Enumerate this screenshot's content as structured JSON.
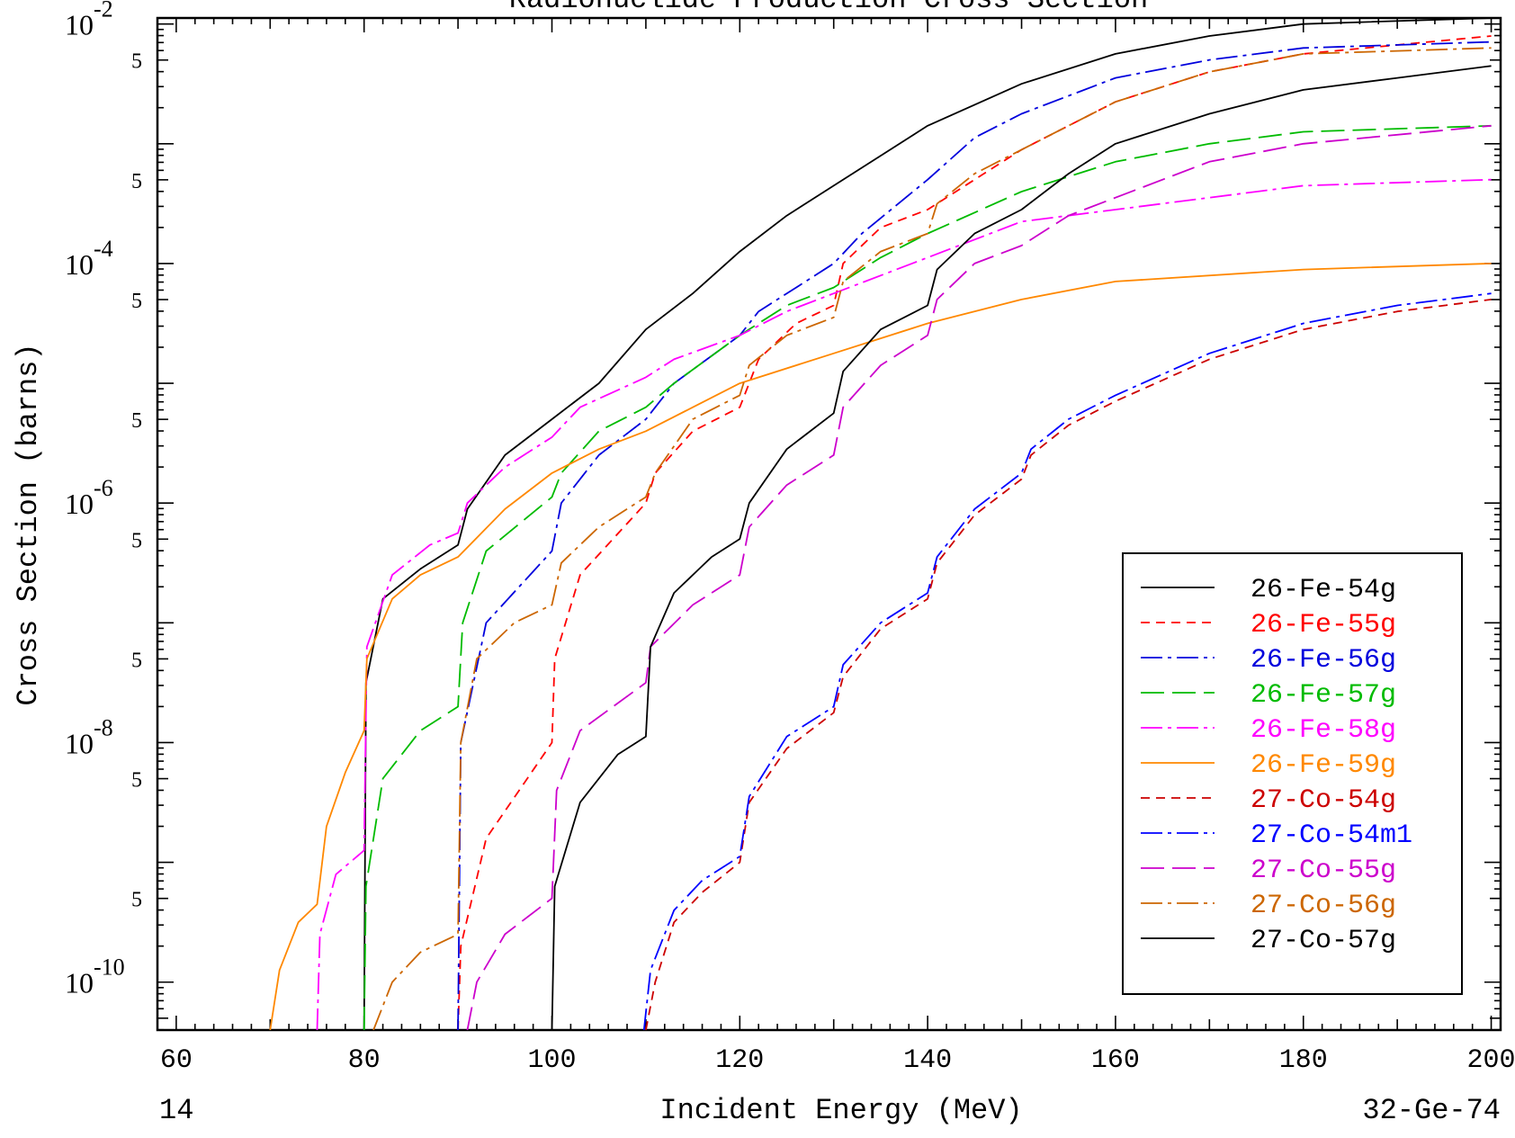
{
  "chart_data": {
    "type": "line",
    "title": "Radionuclide Production Cross Section",
    "xlabel": "Incident Energy (MeV)",
    "ylabel": "Cross Section (barns)",
    "xlim": [
      58,
      201
    ],
    "ylim_log10": [
      -10.4,
      -1.95
    ],
    "y_scale": "log",
    "grid": false,
    "legend_position": "bottom-right",
    "x_ticks": [
      "60",
      "80",
      "100",
      "120",
      "140",
      "160",
      "180",
      "200"
    ],
    "y_decade_labels": [
      {
        "exp": -2,
        "text": "10",
        "sup": "-2"
      },
      {
        "exp": -4,
        "text": "10",
        "sup": "-4"
      },
      {
        "exp": -6,
        "text": "10",
        "sup": "-6"
      },
      {
        "exp": -8,
        "text": "10",
        "sup": "-8"
      },
      {
        "exp": -10,
        "text": "10",
        "sup": "-10"
      }
    ],
    "y_five_label": "5",
    "y_five_decades": [
      -3,
      -4,
      -5,
      -6,
      -7,
      -8,
      -9,
      -10
    ],
    "corner_left": "14",
    "corner_right": "32-Ge-74",
    "series": [
      {
        "name": "26-Fe-54g",
        "color": "#000000",
        "dash": "solid",
        "points": [
          [
            80,
            -10.4
          ],
          [
            80.2,
            -7.5
          ],
          [
            82,
            -6.8
          ],
          [
            86,
            -6.55
          ],
          [
            90,
            -6.35
          ],
          [
            91,
            -6.05
          ],
          [
            95,
            -5.6
          ],
          [
            100,
            -5.3
          ],
          [
            105,
            -5.0
          ],
          [
            110,
            -4.55
          ],
          [
            115,
            -4.25
          ],
          [
            120,
            -3.9
          ],
          [
            125,
            -3.6
          ],
          [
            130,
            -3.35
          ],
          [
            135,
            -3.1
          ],
          [
            140,
            -2.85
          ],
          [
            150,
            -2.5
          ],
          [
            160,
            -2.25
          ],
          [
            170,
            -2.1
          ],
          [
            180,
            -2.0
          ],
          [
            200,
            -1.95
          ]
        ]
      },
      {
        "name": "26-Fe-55g",
        "color": "#ff0000",
        "dash": "short",
        "points": [
          [
            90,
            -10.4
          ],
          [
            90.3,
            -9.7
          ],
          [
            93,
            -8.8
          ],
          [
            100,
            -8.0
          ],
          [
            100.3,
            -7.3
          ],
          [
            103,
            -6.6
          ],
          [
            110,
            -6.0
          ],
          [
            111,
            -5.75
          ],
          [
            115,
            -5.4
          ],
          [
            120,
            -5.2
          ],
          [
            122,
            -4.8
          ],
          [
            126,
            -4.5
          ],
          [
            130,
            -4.35
          ],
          [
            131,
            -4.0
          ],
          [
            135,
            -3.7
          ],
          [
            140,
            -3.55
          ],
          [
            145,
            -3.3
          ],
          [
            150,
            -3.05
          ],
          [
            160,
            -2.65
          ],
          [
            170,
            -2.4
          ],
          [
            180,
            -2.25
          ],
          [
            200,
            -2.1
          ]
        ]
      },
      {
        "name": "26-Fe-56g",
        "color": "#0000dd",
        "dash": "dashdot",
        "points": [
          [
            90,
            -10.4
          ],
          [
            90.3,
            -8.0
          ],
          [
            93,
            -7.0
          ],
          [
            100,
            -6.4
          ],
          [
            101,
            -6.0
          ],
          [
            105,
            -5.6
          ],
          [
            110,
            -5.3
          ],
          [
            113,
            -5.0
          ],
          [
            120,
            -4.6
          ],
          [
            122,
            -4.4
          ],
          [
            126,
            -4.2
          ],
          [
            130,
            -4.0
          ],
          [
            133,
            -3.75
          ],
          [
            140,
            -3.3
          ],
          [
            145,
            -2.95
          ],
          [
            150,
            -2.75
          ],
          [
            160,
            -2.45
          ],
          [
            170,
            -2.3
          ],
          [
            180,
            -2.2
          ],
          [
            200,
            -2.15
          ]
        ]
      },
      {
        "name": "26-Fe-57g",
        "color": "#00bb00",
        "dash": "long",
        "points": [
          [
            80,
            -10.4
          ],
          [
            80.2,
            -9.2
          ],
          [
            82,
            -8.3
          ],
          [
            86,
            -7.9
          ],
          [
            90,
            -7.7
          ],
          [
            90.5,
            -7.0
          ],
          [
            93,
            -6.4
          ],
          [
            100,
            -5.95
          ],
          [
            101,
            -5.75
          ],
          [
            105,
            -5.4
          ],
          [
            110,
            -5.2
          ],
          [
            113,
            -5.0
          ],
          [
            120,
            -4.6
          ],
          [
            125,
            -4.35
          ],
          [
            130,
            -4.2
          ],
          [
            135,
            -3.95
          ],
          [
            140,
            -3.75
          ],
          [
            150,
            -3.4
          ],
          [
            160,
            -3.15
          ],
          [
            170,
            -3.0
          ],
          [
            180,
            -2.9
          ],
          [
            200,
            -2.85
          ]
        ]
      },
      {
        "name": "26-Fe-58g",
        "color": "#ff00ff",
        "dash": "dashdot",
        "points": [
          [
            75,
            -10.4
          ],
          [
            75.3,
            -9.6
          ],
          [
            77,
            -9.1
          ],
          [
            80,
            -8.9
          ],
          [
            80.3,
            -7.2
          ],
          [
            83,
            -6.6
          ],
          [
            87,
            -6.35
          ],
          [
            90,
            -6.25
          ],
          [
            91,
            -6.0
          ],
          [
            95,
            -5.7
          ],
          [
            100,
            -5.45
          ],
          [
            103,
            -5.2
          ],
          [
            110,
            -4.95
          ],
          [
            113,
            -4.8
          ],
          [
            120,
            -4.6
          ],
          [
            125,
            -4.4
          ],
          [
            130,
            -4.25
          ],
          [
            140,
            -3.95
          ],
          [
            150,
            -3.65
          ],
          [
            160,
            -3.55
          ],
          [
            170,
            -3.45
          ],
          [
            180,
            -3.35
          ],
          [
            200,
            -3.3
          ]
        ]
      },
      {
        "name": "26-Fe-59g",
        "color": "#ff8800",
        "dash": "solid",
        "points": [
          [
            70,
            -10.4
          ],
          [
            71,
            -9.9
          ],
          [
            73,
            -9.5
          ],
          [
            75,
            -9.35
          ],
          [
            76,
            -8.7
          ],
          [
            78,
            -8.25
          ],
          [
            80,
            -7.9
          ],
          [
            80.3,
            -7.3
          ],
          [
            83,
            -6.8
          ],
          [
            86,
            -6.6
          ],
          [
            90,
            -6.45
          ],
          [
            95,
            -6.05
          ],
          [
            100,
            -5.75
          ],
          [
            105,
            -5.55
          ],
          [
            110,
            -5.4
          ],
          [
            115,
            -5.2
          ],
          [
            120,
            -5.0
          ],
          [
            130,
            -4.75
          ],
          [
            140,
            -4.5
          ],
          [
            150,
            -4.3
          ],
          [
            160,
            -4.15
          ],
          [
            180,
            -4.05
          ],
          [
            200,
            -4.0
          ]
        ]
      },
      {
        "name": "27-Co-54g",
        "color": "#cc0000",
        "dash": "short",
        "points": [
          [
            110,
            -10.4
          ],
          [
            111,
            -10.0
          ],
          [
            113,
            -9.5
          ],
          [
            116,
            -9.25
          ],
          [
            120,
            -9.0
          ],
          [
            121,
            -8.5
          ],
          [
            125,
            -8.05
          ],
          [
            130,
            -7.75
          ],
          [
            131,
            -7.45
          ],
          [
            135,
            -7.05
          ],
          [
            140,
            -6.8
          ],
          [
            141,
            -6.5
          ],
          [
            145,
            -6.1
          ],
          [
            150,
            -5.8
          ],
          [
            151,
            -5.6
          ],
          [
            155,
            -5.35
          ],
          [
            160,
            -5.15
          ],
          [
            170,
            -4.8
          ],
          [
            180,
            -4.55
          ],
          [
            190,
            -4.4
          ],
          [
            200,
            -4.3
          ]
        ]
      },
      {
        "name": "27-Co-54m1",
        "color": "#0000ff",
        "dash": "dashdot",
        "points": [
          [
            109.8,
            -10.4
          ],
          [
            110.5,
            -9.9
          ],
          [
            113,
            -9.4
          ],
          [
            116,
            -9.15
          ],
          [
            120,
            -8.95
          ],
          [
            121,
            -8.45
          ],
          [
            125,
            -7.95
          ],
          [
            130,
            -7.7
          ],
          [
            131,
            -7.35
          ],
          [
            135,
            -7.0
          ],
          [
            140,
            -6.75
          ],
          [
            141,
            -6.45
          ],
          [
            145,
            -6.05
          ],
          [
            150,
            -5.75
          ],
          [
            151,
            -5.55
          ],
          [
            155,
            -5.3
          ],
          [
            160,
            -5.1
          ],
          [
            170,
            -4.75
          ],
          [
            180,
            -4.5
          ],
          [
            190,
            -4.35
          ],
          [
            200,
            -4.25
          ]
        ]
      },
      {
        "name": "27-Co-55g",
        "color": "#cc00cc",
        "dash": "long",
        "points": [
          [
            91,
            -10.4
          ],
          [
            92,
            -10.0
          ],
          [
            95,
            -9.6
          ],
          [
            100,
            -9.3
          ],
          [
            100.5,
            -8.4
          ],
          [
            103,
            -7.9
          ],
          [
            110,
            -7.5
          ],
          [
            110.5,
            -7.2
          ],
          [
            115,
            -6.85
          ],
          [
            120,
            -6.6
          ],
          [
            121,
            -6.2
          ],
          [
            125,
            -5.85
          ],
          [
            130,
            -5.6
          ],
          [
            131,
            -5.2
          ],
          [
            135,
            -4.85
          ],
          [
            140,
            -4.6
          ],
          [
            141,
            -4.3
          ],
          [
            145,
            -4.0
          ],
          [
            150,
            -3.85
          ],
          [
            155,
            -3.6
          ],
          [
            160,
            -3.45
          ],
          [
            170,
            -3.15
          ],
          [
            180,
            -3.0
          ],
          [
            200,
            -2.85
          ]
        ]
      },
      {
        "name": "27-Co-56g",
        "color": "#cc6600",
        "dash": "dashdot",
        "points": [
          [
            81,
            -10.4
          ],
          [
            83,
            -10.0
          ],
          [
            86,
            -9.75
          ],
          [
            90,
            -9.6
          ],
          [
            90.3,
            -8.0
          ],
          [
            92,
            -7.3
          ],
          [
            96,
            -7.0
          ],
          [
            100,
            -6.85
          ],
          [
            101,
            -6.5
          ],
          [
            105,
            -6.2
          ],
          [
            110,
            -5.95
          ],
          [
            111,
            -5.75
          ],
          [
            115,
            -5.3
          ],
          [
            120,
            -5.1
          ],
          [
            121,
            -4.85
          ],
          [
            125,
            -4.6
          ],
          [
            130,
            -4.45
          ],
          [
            131,
            -4.15
          ],
          [
            135,
            -3.9
          ],
          [
            140,
            -3.75
          ],
          [
            141,
            -3.5
          ],
          [
            145,
            -3.25
          ],
          [
            150,
            -3.05
          ],
          [
            160,
            -2.65
          ],
          [
            170,
            -2.4
          ],
          [
            180,
            -2.25
          ],
          [
            200,
            -2.2
          ]
        ]
      },
      {
        "name": "27-Co-57g",
        "color": "#000000",
        "dash": "solid",
        "points": [
          [
            100,
            -10.4
          ],
          [
            100.3,
            -9.2
          ],
          [
            103,
            -8.5
          ],
          [
            107,
            -8.1
          ],
          [
            110,
            -7.95
          ],
          [
            110.5,
            -7.2
          ],
          [
            113,
            -6.75
          ],
          [
            117,
            -6.45
          ],
          [
            120,
            -6.3
          ],
          [
            121,
            -6.0
          ],
          [
            125,
            -5.55
          ],
          [
            130,
            -5.25
          ],
          [
            131,
            -4.9
          ],
          [
            135,
            -4.55
          ],
          [
            140,
            -4.35
          ],
          [
            141,
            -4.05
          ],
          [
            145,
            -3.75
          ],
          [
            150,
            -3.55
          ],
          [
            155,
            -3.25
          ],
          [
            160,
            -3.0
          ],
          [
            170,
            -2.75
          ],
          [
            180,
            -2.55
          ],
          [
            190,
            -2.45
          ],
          [
            200,
            -2.35
          ]
        ]
      }
    ]
  }
}
